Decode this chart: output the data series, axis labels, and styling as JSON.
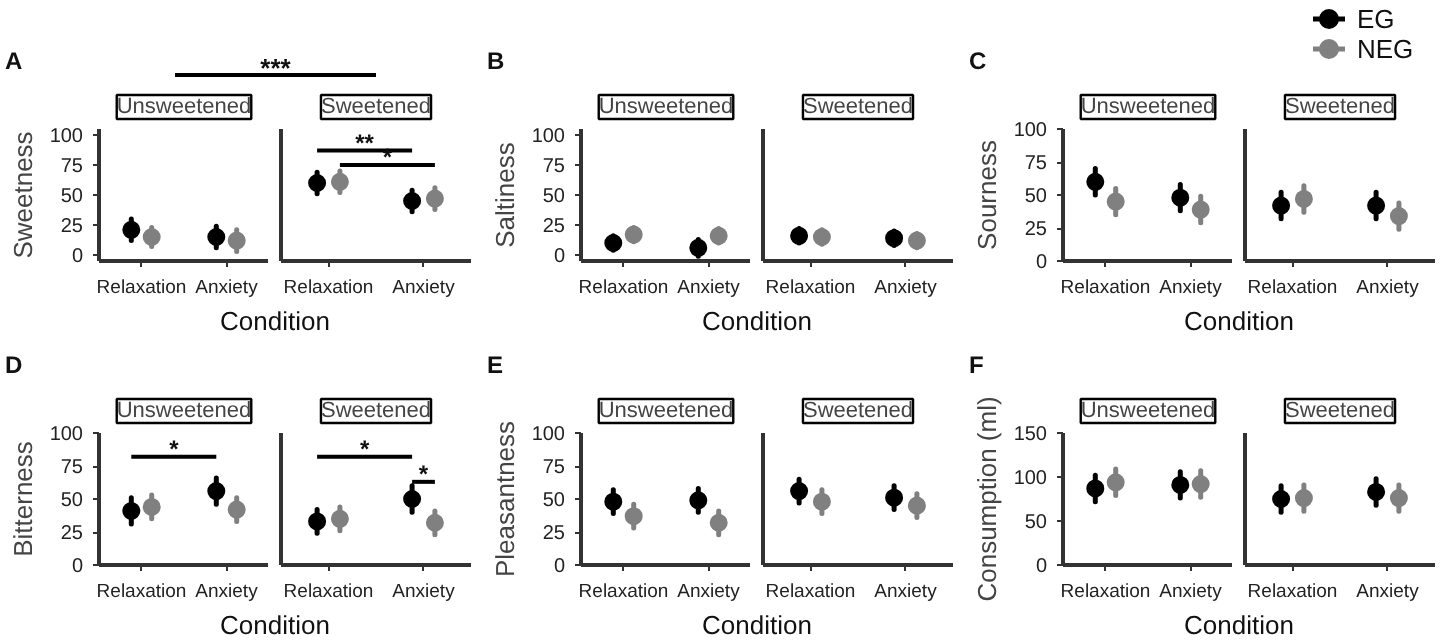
{
  "chart_data": [
    {
      "type": "scatter",
      "title": "A",
      "subtitle": "Unsweetened",
      "ylabel": "Sweetness",
      "xlabel": "Condition",
      "categories": [
        "Relaxation",
        "Anxiety"
      ],
      "ylim": [
        -5,
        105
      ],
      "yticks": [
        0,
        25,
        50,
        75,
        100
      ],
      "marker": "circle",
      "annotations": [
        "***"
      ],
      "series": [
        {
          "color": "#000000",
          "values": [
            21,
            15
          ],
          "errors": [
            9,
            9
          ]
        },
        {
          "color": "#808080",
          "values": [
            15,
            12
          ],
          "errors": [
            8,
            9
          ]
        }
      ]
    },
    {
      "type": "scatter",
      "subtitle": "Sweetened",
      "categories": [
        "Relaxation",
        "Anxiety"
      ],
      "ylim": [
        -5,
        105
      ],
      "yticks": [
        0,
        25,
        50,
        75,
        100
      ],
      "tick_labels": "x",
      "marker": "circle",
      "annotations": [
        "**",
        "*"
      ],
      "series": [
        {
          "color": "#000000",
          "values": [
            60,
            45
          ],
          "errors": [
            9,
            9
          ]
        },
        {
          "color": "#808080",
          "values": [
            61,
            47
          ],
          "errors": [
            9,
            9
          ]
        }
      ]
    },
    {
      "type": "scatter",
      "title": "B",
      "subtitle": "Unsweetened",
      "ylabel": "Saltiness",
      "xlabel": "Condition",
      "categories": [
        "Relaxation",
        "Anxiety"
      ],
      "ylim": [
        -5,
        105
      ],
      "yticks": [
        0,
        25,
        50,
        75,
        100
      ],
      "marker": "circle",
      "series": [
        {
          "color": "#000000",
          "values": [
            10,
            6
          ],
          "errors": [
            6,
            7
          ]
        },
        {
          "color": "#808080",
          "values": [
            17,
            16
          ],
          "errors": [
            6,
            6
          ]
        }
      ]
    },
    {
      "type": "scatter",
      "subtitle": "Sweetened",
      "categories": [
        "Relaxation",
        "Anxiety"
      ],
      "ylim": [
        -5,
        105
      ],
      "yticks": [
        0,
        25,
        50,
        75,
        100
      ],
      "tick_labels": "x",
      "marker": "circle",
      "series": [
        {
          "color": "#000000",
          "values": [
            16,
            14
          ],
          "errors": [
            6,
            6
          ]
        },
        {
          "color": "#808080",
          "values": [
            15,
            12
          ],
          "errors": [
            6,
            6
          ]
        }
      ]
    },
    {
      "type": "scatter",
      "title": "C",
      "subtitle": "Unsweetened",
      "ylabel": "Sourness",
      "xlabel": "Condition",
      "categories": [
        "Relaxation",
        "Anxiety"
      ],
      "ylim": [
        0,
        100
      ],
      "yticks": [
        0,
        25,
        50,
        75,
        100
      ],
      "marker": "circle",
      "series": [
        {
          "color": "#000000",
          "values": [
            60,
            48
          ],
          "errors": [
            10,
            10
          ]
        },
        {
          "color": "#808080",
          "values": [
            45,
            39
          ],
          "errors": [
            10,
            10
          ]
        }
      ]
    },
    {
      "type": "scatter",
      "subtitle": "Sweetened",
      "categories": [
        "Relaxation",
        "Anxiety"
      ],
      "ylim": [
        0,
        100
      ],
      "yticks": [
        0,
        25,
        50,
        75,
        100
      ],
      "tick_labels": "x",
      "marker": "circle",
      "legend": "top right",
      "series": [
        {
          "name": "EG",
          "color": "#000000",
          "values": [
            42,
            42
          ],
          "errors": [
            10,
            10
          ]
        },
        {
          "name": "NEG",
          "color": "#808080",
          "values": [
            47,
            34
          ],
          "errors": [
            10,
            10
          ]
        }
      ]
    },
    {
      "type": "scatter",
      "title": "D",
      "subtitle": "Unsweetened",
      "ylabel": "Bitterness",
      "xlabel": "Condition",
      "categories": [
        "Relaxation",
        "Anxiety"
      ],
      "ylim": [
        0,
        100
      ],
      "yticks": [
        0,
        25,
        50,
        75,
        100
      ],
      "marker": "circle",
      "annotations": [
        "*"
      ],
      "series": [
        {
          "color": "#000000",
          "values": [
            41,
            56
          ],
          "errors": [
            10,
            10
          ]
        },
        {
          "color": "#808080",
          "values": [
            44,
            42
          ],
          "errors": [
            9,
            9
          ]
        }
      ]
    },
    {
      "type": "scatter",
      "subtitle": "Sweetened",
      "categories": [
        "Relaxation",
        "Anxiety"
      ],
      "ylim": [
        0,
        100
      ],
      "yticks": [
        0,
        25,
        50,
        75,
        100
      ],
      "tick_labels": "x",
      "marker": "circle",
      "annotations": [
        "*",
        "*"
      ],
      "series": [
        {
          "color": "#000000",
          "values": [
            33,
            50
          ],
          "errors": [
            9,
            10
          ]
        },
        {
          "color": "#808080",
          "values": [
            35,
            32
          ],
          "errors": [
            9,
            9
          ]
        }
      ]
    },
    {
      "type": "scatter",
      "title": "E",
      "subtitle": "Unsweetened",
      "ylabel": "Pleasantness",
      "xlabel": "Condition",
      "categories": [
        "Relaxation",
        "Anxiety"
      ],
      "ylim": [
        0,
        100
      ],
      "yticks": [
        0,
        25,
        50,
        75,
        100
      ],
      "marker": "circle",
      "series": [
        {
          "color": "#000000",
          "values": [
            48,
            49
          ],
          "errors": [
            9,
            9
          ]
        },
        {
          "color": "#808080",
          "values": [
            37,
            32
          ],
          "errors": [
            9,
            9
          ]
        }
      ]
    },
    {
      "type": "scatter",
      "subtitle": "Sweetened",
      "categories": [
        "Relaxation",
        "Anxiety"
      ],
      "ylim": [
        0,
        100
      ],
      "yticks": [
        0,
        25,
        50,
        75,
        100
      ],
      "tick_labels": "x",
      "marker": "circle",
      "series": [
        {
          "color": "#000000",
          "values": [
            56,
            51
          ],
          "errors": [
            9,
            9
          ]
        },
        {
          "color": "#808080",
          "values": [
            48,
            45
          ],
          "errors": [
            9,
            9
          ]
        }
      ]
    },
    {
      "type": "scatter",
      "title": "F",
      "subtitle": "Unsweetened",
      "ylabel": "Consumption (ml)",
      "xlabel": "Condition",
      "categories": [
        "Relaxation",
        "Anxiety"
      ],
      "ylim": [
        0,
        150
      ],
      "yticks": [
        0,
        50,
        100,
        150
      ],
      "marker": "circle",
      "series": [
        {
          "color": "#000000",
          "values": [
            87,
            91
          ],
          "errors": [
            15,
            15
          ]
        },
        {
          "color": "#808080",
          "values": [
            94,
            92
          ],
          "errors": [
            15,
            15
          ]
        }
      ]
    },
    {
      "type": "scatter",
      "subtitle": "Sweetened",
      "categories": [
        "Relaxation",
        "Anxiety"
      ],
      "ylim": [
        0,
        150
      ],
      "yticks": [
        0,
        50,
        100,
        150
      ],
      "tick_labels": "x",
      "marker": "circle",
      "series": [
        {
          "color": "#000000",
          "values": [
            75,
            83
          ],
          "errors": [
            15,
            15
          ]
        },
        {
          "color": "#808080",
          "values": [
            76,
            76
          ],
          "errors": [
            15,
            15
          ]
        }
      ]
    }
  ]
}
